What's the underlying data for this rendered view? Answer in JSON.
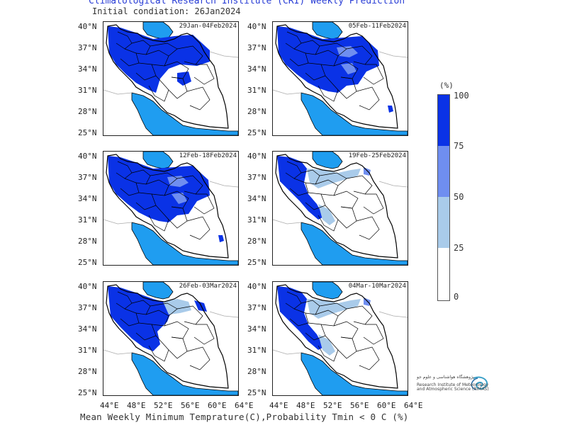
{
  "header": {
    "title": "Climatological Research Institute (CRI) Weekly Prediction",
    "subtitle": "Initial condiation: 26Jan2024"
  },
  "footer": "Mean Weekly Minimum Temprature(C),Probability Tmin < 0 C (%)",
  "axes": {
    "lat_labels": [
      "40°N",
      "37°N",
      "34°N",
      "31°N",
      "28°N",
      "25°N"
    ],
    "lon_labels": [
      "44°E",
      "48°E",
      "52°E",
      "56°E",
      "60°E",
      "64°E"
    ]
  },
  "panels": [
    {
      "period": "29Jan-04Feb2024",
      "cold_extent": "very-high"
    },
    {
      "period": "05Feb-11Feb2024",
      "cold_extent": "high"
    },
    {
      "period": "12Feb-18Feb2024",
      "cold_extent": "high"
    },
    {
      "period": "19Feb-25Feb2024",
      "cold_extent": "low"
    },
    {
      "period": "26Feb-03Mar2024",
      "cold_extent": "medium"
    },
    {
      "period": "04Mar-10Mar2024",
      "cold_extent": "low"
    }
  ],
  "legend": {
    "unit": "(%)",
    "ticks": [
      "100",
      "75",
      "50",
      "25",
      "0"
    ],
    "colors": [
      "#0a32e6",
      "#6f8ef0",
      "#a9cbea",
      "#ffffff"
    ]
  },
  "colors": {
    "sea": "#1f9df0",
    "border": "#000000",
    "title": "#2b3fd6"
  },
  "logo": {
    "text_line1": "پژوهشگاه هواشناسی و علوم جو",
    "text_line2": "Research Institute of Meteorology",
    "text_line3": "and Atmospheric Science (RIMAS)"
  }
}
